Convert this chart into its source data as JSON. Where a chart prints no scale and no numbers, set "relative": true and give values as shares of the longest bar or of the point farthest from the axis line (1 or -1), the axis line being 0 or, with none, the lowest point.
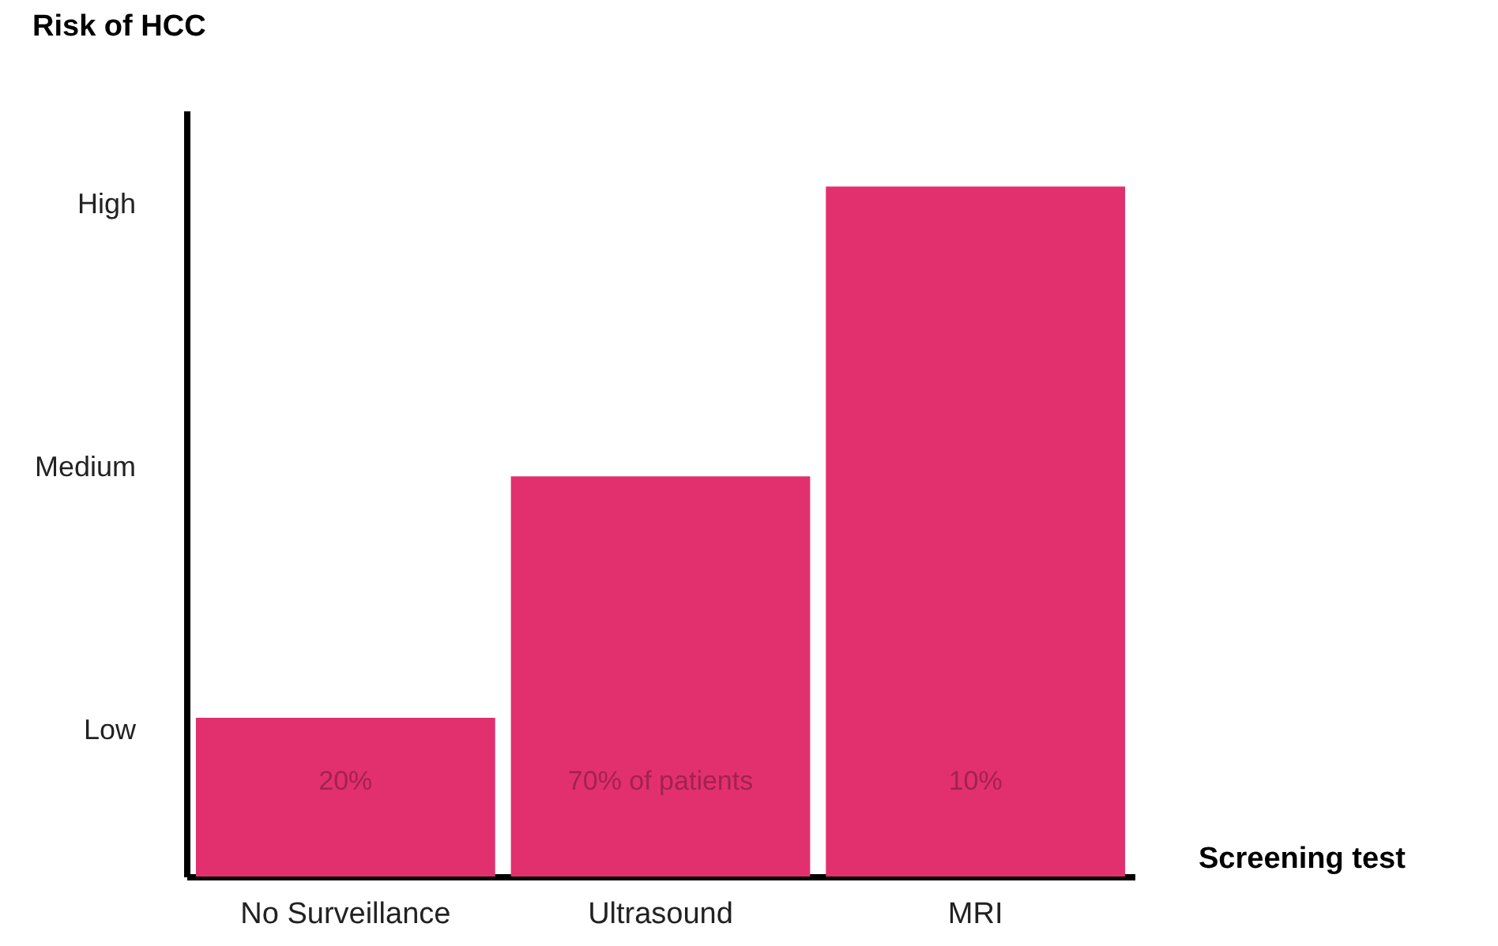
{
  "chart_data": {
    "type": "bar",
    "xlabel": "Screening test",
    "ylabel": "Risk of HCC",
    "categories": [
      "No Surveillance",
      "Ultrasound",
      "MRI"
    ],
    "values": [
      0.23,
      0.58,
      1
    ],
    "color": "#e2306f",
    "relative": true,
    "annotations": [
      "20%",
      "70% of patients",
      "10%",
      "Low",
      "Medium",
      "High"
    ],
    "grid": false
  }
}
